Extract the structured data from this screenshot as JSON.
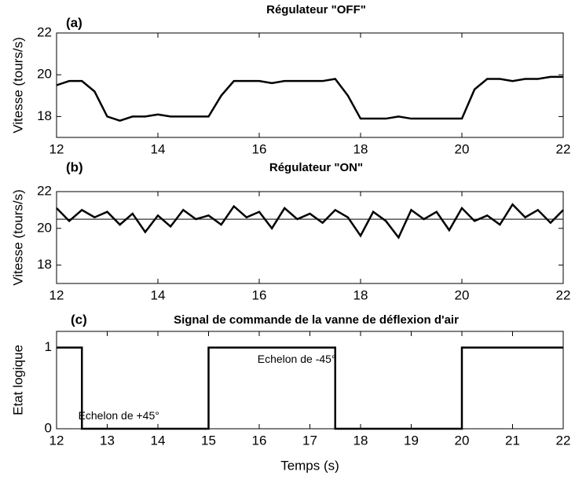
{
  "chart_data": [
    {
      "type": "line",
      "panel_label": "(a)",
      "title": "Régulateur \"OFF\"",
      "ylabel": "Vitesse (tours/s)",
      "x": [
        12,
        12.25,
        12.5,
        12.75,
        13,
        13.25,
        13.5,
        13.75,
        14,
        14.25,
        14.5,
        14.75,
        15,
        15.25,
        15.5,
        15.75,
        16,
        16.25,
        16.5,
        16.75,
        17,
        17.25,
        17.5,
        17.75,
        18,
        18.25,
        18.5,
        18.75,
        19,
        19.25,
        19.5,
        19.75,
        20,
        20.25,
        20.5,
        20.75,
        21,
        21.25,
        21.5,
        21.75,
        22
      ],
      "series": [
        {
          "color": "#000000",
          "values": [
            19.5,
            19.7,
            19.7,
            19.2,
            18.0,
            17.8,
            18.0,
            18.0,
            18.1,
            18.0,
            18.0,
            18.0,
            18.0,
            19.0,
            19.7,
            19.7,
            19.7,
            19.6,
            19.7,
            19.7,
            19.7,
            19.7,
            19.8,
            19.0,
            17.9,
            17.9,
            17.9,
            18.0,
            17.9,
            17.9,
            17.9,
            17.9,
            17.9,
            19.3,
            19.8,
            19.8,
            19.7,
            19.8,
            19.8,
            19.9,
            19.9
          ]
        }
      ],
      "xlim": [
        12,
        22
      ],
      "xticks": [
        12,
        14,
        16,
        18,
        20,
        22
      ],
      "ylim": [
        17,
        22
      ],
      "yticks": [
        18,
        20,
        22
      ]
    },
    {
      "type": "line",
      "panel_label": "(b)",
      "title": "Régulateur \"ON\"",
      "ylabel": "Vitesse (tours/s)",
      "x": [
        12,
        12.25,
        12.5,
        12.75,
        13,
        13.25,
        13.5,
        13.75,
        14,
        14.25,
        14.5,
        14.75,
        15,
        15.25,
        15.5,
        15.75,
        16,
        16.25,
        16.5,
        16.75,
        17,
        17.25,
        17.5,
        17.75,
        18,
        18.25,
        18.5,
        18.75,
        19,
        19.25,
        19.5,
        19.75,
        20,
        20.25,
        20.5,
        20.75,
        21,
        21.25,
        21.5,
        21.75,
        22
      ],
      "series": [
        {
          "color": "#000000",
          "values": [
            21.1,
            20.4,
            21.0,
            20.6,
            20.9,
            20.2,
            20.8,
            19.8,
            20.7,
            20.1,
            21.0,
            20.5,
            20.7,
            20.2,
            21.2,
            20.6,
            20.9,
            20.0,
            21.1,
            20.5,
            20.8,
            20.3,
            21.0,
            20.6,
            19.6,
            20.9,
            20.4,
            19.5,
            21.0,
            20.5,
            20.9,
            19.9,
            21.1,
            20.4,
            20.7,
            20.2,
            21.3,
            20.6,
            21.0,
            20.3,
            21.0
          ]
        }
      ],
      "reference_line": 20.5,
      "xlim": [
        12,
        22
      ],
      "xticks": [
        12,
        14,
        16,
        18,
        20,
        22
      ],
      "ylim": [
        17,
        22
      ],
      "yticks": [
        18,
        20,
        22
      ]
    },
    {
      "type": "line",
      "panel_label": "(c)",
      "title": "Signal de commande de la vanne de déflexion d'air",
      "ylabel": "Etat logique",
      "xlabel": "Temps (s)",
      "x": [
        12,
        12.5,
        12.5,
        15,
        15,
        17.5,
        17.5,
        20,
        20,
        22
      ],
      "series": [
        {
          "color": "#000000",
          "values": [
            1,
            1,
            0,
            0,
            1,
            1,
            0,
            0,
            1,
            1
          ]
        }
      ],
      "annotations": [
        "Echelon de +45°",
        "Echelon de -45°"
      ],
      "xlim": [
        12,
        22
      ],
      "xticks": [
        12,
        13,
        14,
        15,
        16,
        17,
        18,
        19,
        20,
        21,
        22
      ],
      "ylim": [
        0,
        1.2
      ],
      "yticks": [
        0,
        1
      ]
    }
  ]
}
